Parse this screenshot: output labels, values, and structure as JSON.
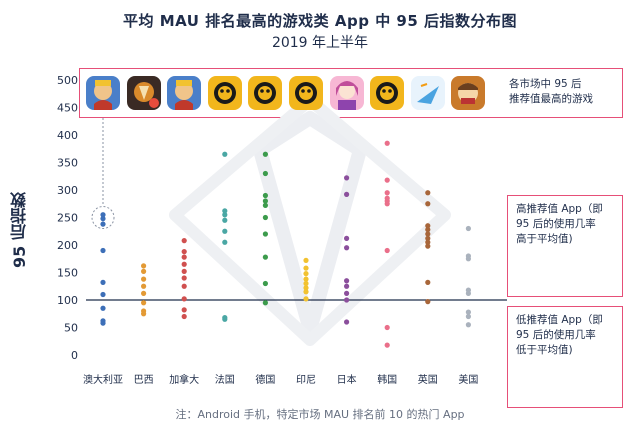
{
  "title": "平均 MAU 排名最高的游戏类 App 中 95 后指数分布图",
  "subtitle": "2019 年上半年",
  "ylabel": "95 后指数",
  "note": "注：Android 手机，特定市场 MAU 排名前 10 的热门 App",
  "top_box_label": [
    "各市场中 95 后",
    "推荐值最高的游戏"
  ],
  "high_box_label": [
    "高推荐值 App（即",
    "95 后的使用几率",
    "高于平均值)"
  ],
  "low_box_label": [
    "低推荐值 App（即",
    "95 后的使用几率",
    "低于平均值)"
  ],
  "icons": [
    {
      "market": "澳大利亚",
      "icon": "clash-royale-icon",
      "color": "#4a7fc9"
    },
    {
      "market": "巴西",
      "icon": "free-fire-icon",
      "color": "#d98a2b"
    },
    {
      "market": "加拿大",
      "icon": "clash-royale-icon",
      "color": "#4a7fc9"
    },
    {
      "market": "法国",
      "icon": "brawl-stars-icon",
      "color": "#f2b61c"
    },
    {
      "market": "德国",
      "icon": "brawl-stars-icon",
      "color": "#f2b61c"
    },
    {
      "market": "印尼",
      "icon": "brawl-stars-icon",
      "color": "#f2b61c"
    },
    {
      "market": "日本",
      "icon": "anime-game-icon",
      "color": "#c04e9a"
    },
    {
      "market": "韩国",
      "icon": "brawl-stars-icon",
      "color": "#f2b61c"
    },
    {
      "market": "英国",
      "icon": "paper-toss-icon",
      "color": "#4aa3e0"
    },
    {
      "market": "美国",
      "icon": "clash-of-clans-icon",
      "color": "#c97a2b"
    }
  ],
  "chart_data": {
    "type": "scatter",
    "title": "平均 MAU 排名最高的游戏类 App 中 95 后指数分布图",
    "subtitle": "2019 年上半年",
    "ylabel": "95 后指数",
    "xlabel": "",
    "categories": [
      "澳大利亚",
      "巴西",
      "加拿大",
      "法国",
      "德国",
      "印尼",
      "日本",
      "韩国",
      "英国",
      "美国"
    ],
    "yticks": [
      0,
      50,
      100,
      150,
      200,
      250,
      300,
      350,
      400,
      450,
      500
    ],
    "ylim": [
      0,
      500
    ],
    "reference_line": 100,
    "series": [
      {
        "category": "澳大利亚",
        "color": "#3d6fb8",
        "values": [
          255,
          248,
          238,
          190,
          132,
          110,
          85,
          62,
          58
        ]
      },
      {
        "category": "巴西",
        "color": "#e39a35",
        "values": [
          162,
          152,
          138,
          125,
          112,
          95,
          80,
          75
        ]
      },
      {
        "category": "加拿大",
        "color": "#d0504f",
        "values": [
          208,
          188,
          178,
          165,
          152,
          140,
          125,
          102,
          82,
          70
        ]
      },
      {
        "category": "法国",
        "color": "#4aa7a4",
        "values": [
          365,
          262,
          255,
          245,
          225,
          205,
          68,
          65
        ]
      },
      {
        "category": "德国",
        "color": "#3c9b4c",
        "values": [
          365,
          330,
          290,
          280,
          272,
          250,
          220,
          178,
          130,
          95
        ]
      },
      {
        "category": "印尼",
        "color": "#f2c230",
        "values": [
          172,
          158,
          148,
          138,
          130,
          122,
          115,
          102
        ]
      },
      {
        "category": "日本",
        "color": "#8b4f9c",
        "values": [
          322,
          292,
          212,
          195,
          135,
          125,
          112,
          100,
          60
        ]
      },
      {
        "category": "韩国",
        "color": "#ea6f8a",
        "values": [
          385,
          318,
          295,
          285,
          280,
          275,
          190,
          50,
          18
        ]
      },
      {
        "category": "英国",
        "color": "#a8663a",
        "values": [
          295,
          275,
          235,
          228,
          220,
          212,
          205,
          198,
          132,
          97
        ]
      },
      {
        "category": "美国",
        "color": "#aab2bd",
        "values": [
          230,
          180,
          175,
          118,
          112,
          78,
          70,
          55
        ]
      }
    ],
    "highlight": {
      "category": "澳大利亚",
      "value": 250
    }
  }
}
